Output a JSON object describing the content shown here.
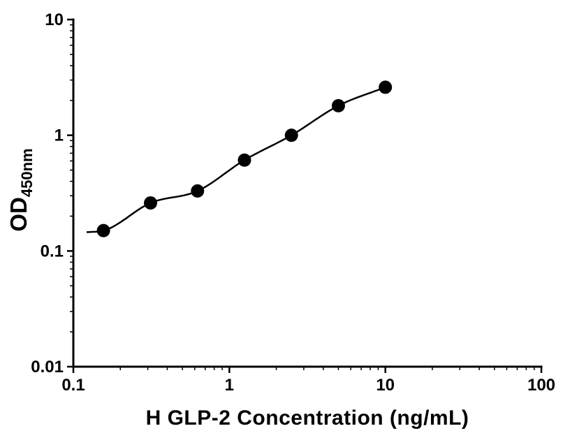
{
  "figure": {
    "background": "#ffffff",
    "axis_color": "#000000",
    "point_color": "#000000",
    "curve_color": "#000000",
    "text_color": "#000000"
  },
  "chart_data": {
    "type": "scatter",
    "title": "",
    "xlabel": "H GLP-2 Concentration (ng/mL)",
    "ylabel_base": "OD",
    "ylabel_sub": "450nm",
    "x_scale": "log",
    "y_scale": "log",
    "xlim": [
      0.1,
      100
    ],
    "ylim": [
      0.01,
      10
    ],
    "x_ticks": [
      0.1,
      1,
      10,
      100
    ],
    "x_tick_labels": [
      "0.1",
      "1",
      "10",
      "100"
    ],
    "y_ticks": [
      0.01,
      0.1,
      1,
      10
    ],
    "y_tick_labels": [
      "0.01",
      "0.1",
      "1",
      "10"
    ],
    "grid": false,
    "legend": "none",
    "series": [
      {
        "marker": "filled-circle",
        "curve": "smooth-fit-through-points",
        "points": [
          {
            "x": 0.156,
            "y": 0.15
          },
          {
            "x": 0.3125,
            "y": 0.26
          },
          {
            "x": 0.625,
            "y": 0.33
          },
          {
            "x": 1.25,
            "y": 0.61
          },
          {
            "x": 2.5,
            "y": 1.0
          },
          {
            "x": 5,
            "y": 1.8
          },
          {
            "x": 10,
            "y": 2.6
          }
        ]
      }
    ]
  }
}
